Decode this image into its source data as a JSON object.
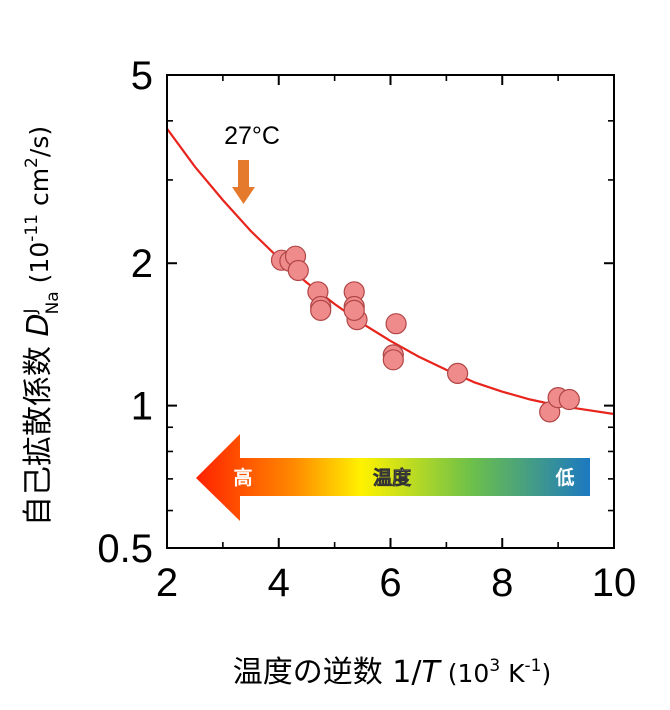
{
  "chart_data": {
    "type": "scatter",
    "xlabel_prefix": "温度の逆数 1/",
    "xlabel_var": "T",
    "xlabel_unit_open": " (10",
    "xlabel_unit_exp": "3",
    "xlabel_unit_mid": " K",
    "xlabel_unit_exp2": "-1",
    "xlabel_unit_close": ")",
    "ylabel_prefix": "自己拡散係数 ",
    "ylabel_var": "D",
    "ylabel_sup": "J",
    "ylabel_sub": "Na",
    "ylabel_unit_open": " (10",
    "ylabel_unit_exp": "-11",
    "ylabel_unit_mid": " cm",
    "ylabel_unit_exp2": "2",
    "ylabel_unit_close": "/s)",
    "xlim": [
      2,
      10
    ],
    "ylim": [
      0.5,
      5
    ],
    "yscale": "log",
    "xticks": [
      2,
      4,
      6,
      8,
      10
    ],
    "xtick_labels": [
      "2",
      "4",
      "6",
      "8",
      "10"
    ],
    "yticks": [
      0.5,
      1,
      2,
      5
    ],
    "ytick_labels": [
      "0.5",
      "1",
      "2",
      "5"
    ],
    "points": {
      "x": [
        4.05,
        4.2,
        4.3,
        4.35,
        4.7,
        4.75,
        4.75,
        5.35,
        5.35,
        5.4,
        5.35,
        6.05,
        6.05,
        6.1,
        7.2,
        8.85,
        9.0,
        9.2
      ],
      "y": [
        2.03,
        2.02,
        2.07,
        1.93,
        1.74,
        1.62,
        1.59,
        1.74,
        1.62,
        1.52,
        1.59,
        1.28,
        1.25,
        1.49,
        1.17,
        0.97,
        1.04,
        1.03
      ],
      "color": "#f08b8b",
      "edge": "#b04545"
    },
    "fit_curve": {
      "x": [
        2.0,
        2.5,
        3.0,
        3.5,
        4.0,
        4.5,
        5.0,
        5.5,
        6.0,
        6.5,
        7.0,
        7.5,
        8.0,
        8.5,
        9.0,
        9.5,
        10.0
      ],
      "y": [
        3.85,
        3.2,
        2.72,
        2.34,
        2.05,
        1.82,
        1.64,
        1.49,
        1.37,
        1.27,
        1.19,
        1.12,
        1.07,
        1.03,
        1.0,
        0.98,
        0.96
      ],
      "color": "#e8241c"
    },
    "annotation": {
      "text": "27°C",
      "x": 3.35,
      "y": 4.0,
      "arrow_color": "#e57a2d"
    },
    "gradient_arrow": {
      "label_high": "高",
      "label_mid": "温度",
      "label_low": "低",
      "colors": [
        "#ff2a00",
        "#ff7a00",
        "#ffef00",
        "#7cc83a",
        "#1f7fc0"
      ]
    }
  }
}
